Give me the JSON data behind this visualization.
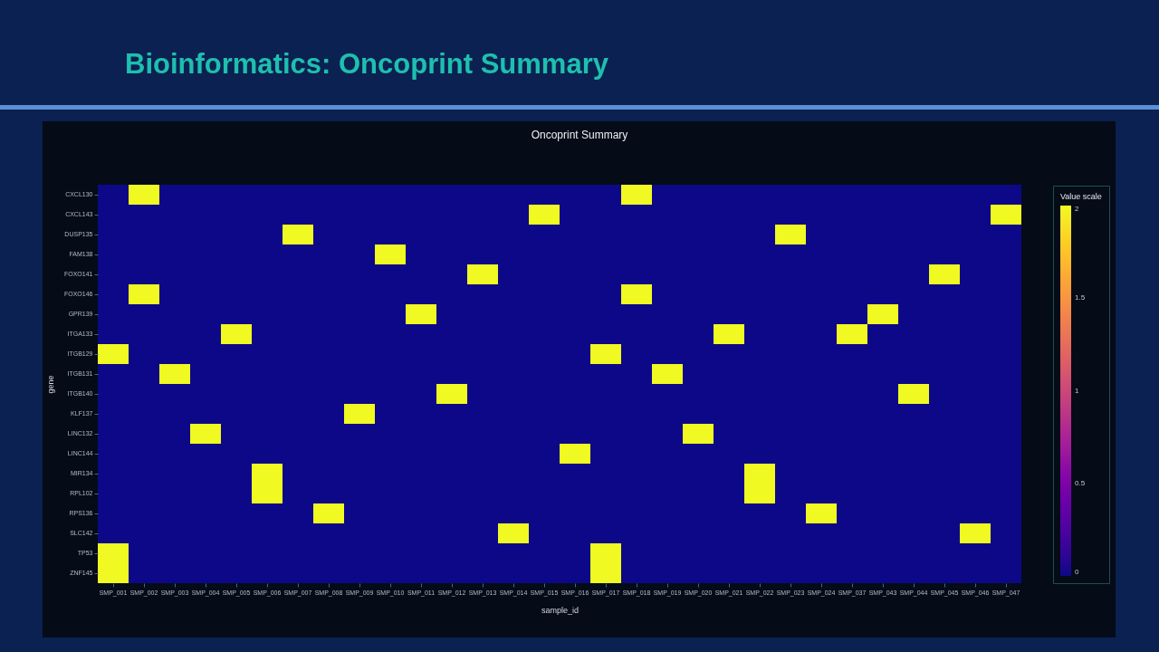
{
  "chart_data": {
    "type": "heatmap",
    "title": "Bioinformatics: Oncoprint Summary",
    "subtitle": "Oncoprint Summary",
    "xlabel": "sample_id",
    "ylabel": "gene",
    "clabel": "Value scale",
    "categories": [
      "SMP_001",
      "SMP_002",
      "SMP_003",
      "SMP_004",
      "SMP_005",
      "SMP_006",
      "SMP_007",
      "SMP_008",
      "SMP_009",
      "SMP_010",
      "SMP_011",
      "SMP_012",
      "SMP_013",
      "SMP_014",
      "SMP_015",
      "SMP_016",
      "SMP_017",
      "SMP_018",
      "SMP_019",
      "SMP_020",
      "SMP_021",
      "SMP_022",
      "SMP_023",
      "SMP_024",
      "SMP_037",
      "SMP_043",
      "SMP_044",
      "SMP_045",
      "SMP_046",
      "SMP_047"
    ],
    "y_categories": [
      "CXCL130",
      "CXCL143",
      "DUSP135",
      "FAM138",
      "FOXO141",
      "FOXO146",
      "GPR139",
      "ITGA133",
      "ITGB129",
      "ITGB131",
      "ITGB140",
      "KLF137",
      "LINC132",
      "LINC144",
      "MIR134",
      "RPL102",
      "RPS136",
      "SLC142",
      "TP53",
      "ZNF145"
    ],
    "cells": [
      [
        0,
        2,
        0,
        0,
        0,
        0,
        0,
        0,
        0,
        0,
        0,
        0,
        0,
        0,
        0,
        0,
        0,
        2,
        0,
        0,
        0,
        0,
        0,
        0,
        0,
        0,
        0,
        0,
        0,
        0
      ],
      [
        0,
        0,
        0,
        0,
        0,
        0,
        0,
        0,
        0,
        0,
        0,
        0,
        0,
        0,
        2,
        0,
        0,
        0,
        0,
        0,
        0,
        0,
        0,
        0,
        0,
        0,
        0,
        0,
        0,
        2
      ],
      [
        0,
        0,
        0,
        0,
        0,
        0,
        2,
        0,
        0,
        0,
        0,
        0,
        0,
        0,
        0,
        0,
        0,
        0,
        0,
        0,
        0,
        0,
        2,
        0,
        0,
        0,
        0,
        0,
        0,
        0
      ],
      [
        0,
        0,
        0,
        0,
        0,
        0,
        0,
        0,
        0,
        2,
        0,
        0,
        0,
        0,
        0,
        0,
        0,
        0,
        0,
        0,
        0,
        0,
        0,
        0,
        0,
        0,
        0,
        0,
        0,
        0
      ],
      [
        0,
        0,
        0,
        0,
        0,
        0,
        0,
        0,
        0,
        0,
        0,
        0,
        2,
        0,
        0,
        0,
        0,
        0,
        0,
        0,
        0,
        0,
        0,
        0,
        0,
        0,
        0,
        2,
        0,
        0
      ],
      [
        0,
        2,
        0,
        0,
        0,
        0,
        0,
        0,
        0,
        0,
        0,
        0,
        0,
        0,
        0,
        0,
        0,
        2,
        0,
        0,
        0,
        0,
        0,
        0,
        0,
        0,
        0,
        0,
        0,
        0
      ],
      [
        0,
        0,
        0,
        0,
        0,
        0,
        0,
        0,
        0,
        0,
        2,
        0,
        0,
        0,
        0,
        0,
        0,
        0,
        0,
        0,
        0,
        0,
        0,
        0,
        0,
        2,
        0,
        0,
        0,
        0
      ],
      [
        0,
        0,
        0,
        0,
        2,
        0,
        0,
        0,
        0,
        0,
        0,
        0,
        0,
        0,
        0,
        0,
        0,
        0,
        0,
        0,
        2,
        0,
        0,
        0,
        2,
        0,
        0,
        0,
        0,
        0
      ],
      [
        2,
        0,
        0,
        0,
        0,
        0,
        0,
        0,
        0,
        0,
        0,
        0,
        0,
        0,
        0,
        0,
        2,
        0,
        0,
        0,
        0,
        0,
        0,
        0,
        0,
        0,
        0,
        0,
        0,
        0
      ],
      [
        0,
        0,
        2,
        0,
        0,
        0,
        0,
        0,
        0,
        0,
        0,
        0,
        0,
        0,
        0,
        0,
        0,
        0,
        2,
        0,
        0,
        0,
        0,
        0,
        0,
        0,
        0,
        0,
        0,
        0
      ],
      [
        0,
        0,
        0,
        0,
        0,
        0,
        0,
        0,
        0,
        0,
        0,
        2,
        0,
        0,
        0,
        0,
        0,
        0,
        0,
        0,
        0,
        0,
        0,
        0,
        0,
        0,
        2,
        0,
        0,
        0
      ],
      [
        0,
        0,
        0,
        0,
        0,
        0,
        0,
        0,
        2,
        0,
        0,
        0,
        0,
        0,
        0,
        0,
        0,
        0,
        0,
        0,
        0,
        0,
        0,
        0,
        0,
        0,
        0,
        0,
        0,
        0
      ],
      [
        0,
        0,
        0,
        2,
        0,
        0,
        0,
        0,
        0,
        0,
        0,
        0,
        0,
        0,
        0,
        0,
        0,
        0,
        0,
        2,
        0,
        0,
        0,
        0,
        0,
        0,
        0,
        0,
        0,
        0
      ],
      [
        0,
        0,
        0,
        0,
        0,
        0,
        0,
        0,
        0,
        0,
        0,
        0,
        0,
        0,
        0,
        2,
        0,
        0,
        0,
        0,
        0,
        0,
        0,
        0,
        0,
        0,
        0,
        0,
        0,
        0
      ],
      [
        0,
        0,
        0,
        0,
        0,
        2,
        0,
        0,
        0,
        0,
        0,
        0,
        0,
        0,
        0,
        0,
        0,
        0,
        0,
        0,
        0,
        2,
        0,
        0,
        0,
        0,
        0,
        0,
        0,
        0
      ],
      [
        0,
        0,
        0,
        0,
        0,
        2,
        0,
        0,
        0,
        0,
        0,
        0,
        0,
        0,
        0,
        0,
        0,
        0,
        0,
        0,
        0,
        2,
        0,
        0,
        0,
        0,
        0,
        0,
        0,
        0
      ],
      [
        0,
        0,
        0,
        0,
        0,
        0,
        0,
        2,
        0,
        0,
        0,
        0,
        0,
        0,
        0,
        0,
        0,
        0,
        0,
        0,
        0,
        0,
        0,
        2,
        0,
        0,
        0,
        0,
        0,
        0
      ],
      [
        0,
        0,
        0,
        0,
        0,
        0,
        0,
        0,
        0,
        0,
        0,
        0,
        0,
        2,
        0,
        0,
        0,
        0,
        0,
        0,
        0,
        0,
        0,
        0,
        0,
        0,
        0,
        0,
        2,
        0
      ],
      [
        2,
        0,
        0,
        0,
        0,
        0,
        0,
        0,
        0,
        0,
        0,
        0,
        0,
        0,
        0,
        0,
        2,
        0,
        0,
        0,
        0,
        0,
        0,
        0,
        0,
        0,
        0,
        0,
        0,
        0
      ],
      [
        2,
        0,
        0,
        0,
        0,
        0,
        0,
        0,
        0,
        0,
        0,
        0,
        0,
        0,
        0,
        0,
        2,
        0,
        0,
        0,
        0,
        0,
        0,
        0,
        0,
        0,
        0,
        0,
        0,
        0
      ]
    ],
    "clim": [
      0,
      2
    ],
    "cticks": [
      0,
      0.5,
      1,
      1.5,
      2
    ]
  }
}
